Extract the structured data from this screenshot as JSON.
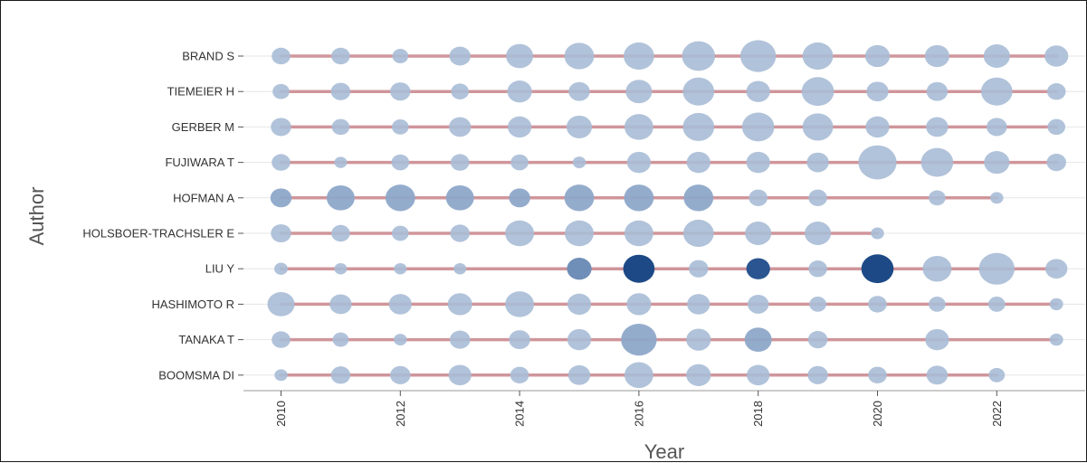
{
  "chart_data": {
    "type": "scatter",
    "xlabel": "Year",
    "ylabel": "Author",
    "xlim": [
      2009.6,
      2023.4
    ],
    "x_ticks": [
      "2010",
      "2012",
      "2014",
      "2016",
      "2018",
      "2020",
      "2022"
    ],
    "grid": "horizontal",
    "colors": {
      "bubble_light": "#a9bdd6",
      "bubble_dark": "#1d4a86",
      "timeline": "#c9858b",
      "gridline": "#e6e6e6"
    },
    "series": [
      {
        "author": "BRAND S",
        "start": 2010,
        "end": 2023,
        "points": [
          [
            2010,
            1
          ],
          [
            2011,
            1
          ],
          [
            2012,
            0.7
          ],
          [
            2013,
            1.3
          ],
          [
            2014,
            2
          ],
          [
            2015,
            2.3
          ],
          [
            2016,
            2.4
          ],
          [
            2017,
            2.7
          ],
          [
            2018,
            3
          ],
          [
            2019,
            2.4
          ],
          [
            2020,
            1.7
          ],
          [
            2021,
            1.7
          ],
          [
            2022,
            1.9
          ],
          [
            2023,
            1.6
          ]
        ]
      },
      {
        "author": "TIEMEIER H",
        "start": 2010,
        "end": 2023,
        "points": [
          [
            2010,
            0.8
          ],
          [
            2011,
            1.1
          ],
          [
            2012,
            1.2
          ],
          [
            2013,
            0.9
          ],
          [
            2014,
            1.7
          ],
          [
            2015,
            1.3
          ],
          [
            2016,
            1.9
          ],
          [
            2017,
            2.5
          ],
          [
            2018,
            1.6
          ],
          [
            2019,
            2.6
          ],
          [
            2020,
            1.4
          ],
          [
            2021,
            1.3
          ],
          [
            2022,
            2.5
          ],
          [
            2023,
            1
          ]
        ]
      },
      {
        "author": "GERBER M",
        "start": 2010,
        "end": 2023,
        "points": [
          [
            2010,
            1.2
          ],
          [
            2011,
            0.9
          ],
          [
            2012,
            0.8
          ],
          [
            2013,
            1.4
          ],
          [
            2014,
            1.6
          ],
          [
            2015,
            1.8
          ],
          [
            2016,
            2.2
          ],
          [
            2017,
            2.5
          ],
          [
            2018,
            2.6
          ],
          [
            2019,
            2.4
          ],
          [
            2020,
            1.6
          ],
          [
            2021,
            1.4
          ],
          [
            2022,
            1.2
          ],
          [
            2023,
            0.9
          ]
        ]
      },
      {
        "author": "FUJIWARA T",
        "start": 2010,
        "end": 2023,
        "points": [
          [
            2010,
            1
          ],
          [
            2011,
            0.3
          ],
          [
            2012,
            0.9
          ],
          [
            2013,
            1
          ],
          [
            2014,
            0.9
          ],
          [
            2015,
            0.35
          ],
          [
            2016,
            1.6
          ],
          [
            2017,
            1.6
          ],
          [
            2018,
            1.6
          ],
          [
            2019,
            1.4
          ],
          [
            2020,
            3.3
          ],
          [
            2021,
            2.6
          ],
          [
            2022,
            1.8
          ],
          [
            2023,
            1.1
          ]
        ]
      },
      {
        "author": "HOFMAN A",
        "start": 2010,
        "end": 2022,
        "points": [
          [
            2010,
            1.3
          ],
          [
            2011,
            2.1
          ],
          [
            2012,
            2.3
          ],
          [
            2013,
            2.1
          ],
          [
            2014,
            1.3
          ],
          [
            2015,
            2.3
          ],
          [
            2016,
            2.3
          ],
          [
            2017,
            2.3
          ],
          [
            2018,
            1
          ],
          [
            2019,
            1
          ],
          [
            2021,
            0.8
          ],
          [
            2022,
            0.35
          ]
        ]
      },
      {
        "author": "HOLSBOER-TRACHSLER E",
        "start": 2010,
        "end": 2020,
        "points": [
          [
            2010,
            1.2
          ],
          [
            2011,
            1
          ],
          [
            2012,
            0.8
          ],
          [
            2013,
            1.1
          ],
          [
            2014,
            2.2
          ],
          [
            2015,
            2.2
          ],
          [
            2016,
            2.2
          ],
          [
            2017,
            2.4
          ],
          [
            2018,
            1.9
          ],
          [
            2019,
            1.9
          ],
          [
            2020,
            0.35
          ]
        ]
      },
      {
        "author": "LIU Y",
        "start": 2010,
        "end": 2023,
        "points": [
          [
            2010,
            0.4
          ],
          [
            2011,
            0.3
          ],
          [
            2012,
            0.3
          ],
          [
            2013,
            0.3
          ],
          [
            2015,
            1.7
          ],
          [
            2016,
            2.5
          ],
          [
            2017,
            1.1
          ],
          [
            2018,
            1.6
          ],
          [
            2019,
            1
          ],
          [
            2020,
            2.6
          ],
          [
            2021,
            2.2
          ],
          [
            2022,
            3
          ],
          [
            2023,
            1.4
          ]
        ]
      },
      {
        "author": "HASHIMOTO R",
        "start": 2010,
        "end": 2023,
        "points": [
          [
            2010,
            2
          ],
          [
            2011,
            1.4
          ],
          [
            2012,
            1.5
          ],
          [
            2013,
            1.7
          ],
          [
            2014,
            2.2
          ],
          [
            2015,
            1.6
          ],
          [
            2016,
            1.7
          ],
          [
            2017,
            1.5
          ],
          [
            2018,
            1.3
          ],
          [
            2019,
            0.8
          ],
          [
            2020,
            1
          ],
          [
            2021,
            0.8
          ],
          [
            2022,
            0.8
          ],
          [
            2023,
            0.4
          ]
        ]
      },
      {
        "author": "TANAKA T",
        "start": 2010,
        "end": 2023,
        "points": [
          [
            2010,
            1
          ],
          [
            2011,
            0.7
          ],
          [
            2012,
            0.35
          ],
          [
            2013,
            1.2
          ],
          [
            2014,
            1.3
          ],
          [
            2015,
            1.6
          ],
          [
            2016,
            3
          ],
          [
            2017,
            1.7
          ],
          [
            2018,
            2
          ],
          [
            2019,
            1.1
          ],
          [
            2021,
            1.6
          ],
          [
            2023,
            0.4
          ]
        ]
      },
      {
        "author": "BOOMSMA DI",
        "start": 2010,
        "end": 2022,
        "points": [
          [
            2010,
            0.35
          ],
          [
            2011,
            1.1
          ],
          [
            2012,
            1.2
          ],
          [
            2013,
            1.5
          ],
          [
            2014,
            1
          ],
          [
            2015,
            1.4
          ],
          [
            2016,
            2.2
          ],
          [
            2017,
            1.7
          ],
          [
            2018,
            1.5
          ],
          [
            2019,
            1.2
          ],
          [
            2020,
            1
          ],
          [
            2021,
            1.3
          ],
          [
            2022,
            0.7
          ]
        ]
      }
    ]
  }
}
